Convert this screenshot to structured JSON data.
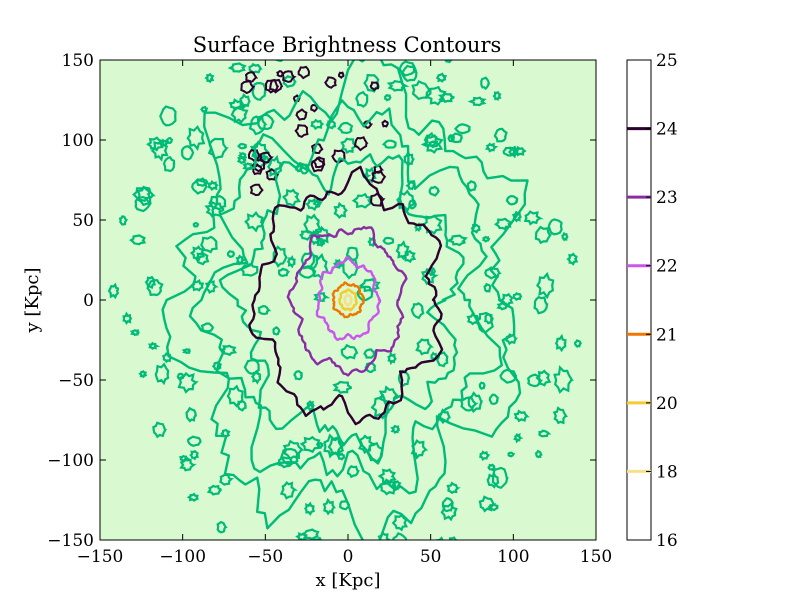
{
  "chart_data": {
    "type": "contour",
    "title": "Surface Brightness Contours",
    "xlabel": "x [Kpc]",
    "ylabel": "y [Kpc]",
    "xlim": [
      -150,
      150
    ],
    "ylim": [
      -150,
      150
    ],
    "xticks": [
      -150,
      -100,
      -50,
      0,
      50,
      100,
      150
    ],
    "yticks": [
      -150,
      -100,
      -50,
      0,
      50,
      100,
      150
    ],
    "xtick_labels": [
      "−150",
      "−100",
      "−50",
      "0",
      "50",
      "100",
      "150"
    ],
    "ytick_labels": [
      "−150",
      "−100",
      "−50",
      "0",
      "50",
      "100",
      "150"
    ],
    "background_color": "#d9fad0",
    "center": [
      0,
      0
    ],
    "levels": [
      {
        "value": 25,
        "color": "#00bb77",
        "rx": 100,
        "ry": 135
      },
      {
        "value": 24,
        "color": "#2d0030",
        "rx": 55,
        "ry": 72
      },
      {
        "value": 23,
        "color": "#8a2da4",
        "rx": 33,
        "ry": 44
      },
      {
        "value": 22,
        "color": "#cc55ee",
        "rx": 18,
        "ry": 24
      },
      {
        "value": 21,
        "color": "#ee7700",
        "rx": 9,
        "ry": 10
      },
      {
        "value": 20,
        "color": "#f2cc30",
        "rx": 5,
        "ry": 6
      },
      {
        "value": 18,
        "color": "#f8e088",
        "rx": 2,
        "ry": 3
      }
    ],
    "colorbar": {
      "ticks": [
        25,
        24,
        23,
        22,
        21,
        20,
        18,
        16
      ],
      "colors": {
        "24": "#2d0030",
        "23": "#8a2da4",
        "22": "#cc55ee",
        "21": "#ee7700",
        "20": "#f2cc30",
        "18": "#f8e088"
      }
    }
  }
}
